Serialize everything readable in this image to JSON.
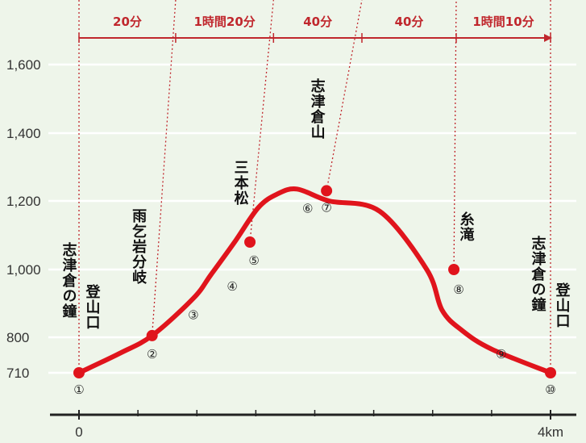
{
  "colors": {
    "profile_line": "#e0141c",
    "guide_line": "#c0272d",
    "axis": "#222222",
    "grid": "#ffffff",
    "background": "#eef5ea"
  },
  "chart_data": {
    "type": "line",
    "title": "",
    "xlabel": "",
    "ylabel": "",
    "xlim": [
      0,
      4
    ],
    "ylim": [
      710,
      1700
    ],
    "grid": true,
    "y_ticks": [
      "1,600",
      "1,400",
      "1,200",
      "1,000",
      "800",
      "710"
    ],
    "x_ticks": [
      "0",
      "4km"
    ],
    "profile": {
      "x": [
        0,
        0.35,
        0.62,
        0.97,
        1.12,
        1.32,
        1.52,
        1.68,
        1.85,
        2.12,
        2.55,
        2.95,
        3.08,
        3.25,
        3.5,
        4.0
      ],
      "y": [
        710,
        760,
        805,
        915,
        985,
        1080,
        1180,
        1220,
        1235,
        1200,
        1170,
        1000,
        880,
        820,
        770,
        710
      ]
    },
    "waypoints": [
      {
        "num": "①",
        "x": 0.0,
        "y": 710
      },
      {
        "num": "②",
        "x": 0.62,
        "y": 805
      },
      {
        "num": "③",
        "x": 0.97,
        "y": 915
      },
      {
        "num": "④",
        "x": 1.3,
        "y": 1000
      },
      {
        "num": "⑤",
        "x": 1.45,
        "y": 1080
      },
      {
        "num": "⑥",
        "x": 1.68,
        "y": 1185
      },
      {
        "num": "⑦",
        "x": 2.1,
        "y": 1230
      },
      {
        "num": "⑧",
        "x": 3.18,
        "y": 1000
      },
      {
        "num": "⑨",
        "x": 3.5,
        "y": 800
      },
      {
        "num": "⑩",
        "x": 4.0,
        "y": 710
      }
    ],
    "places": [
      {
        "name": "志津倉の鐘",
        "x": 0.0,
        "wp": 0
      },
      {
        "name": "登山口",
        "x": 0.0,
        "wp": 0
      },
      {
        "name": "雨乞岩分岐",
        "x": 0.62,
        "wp": 1
      },
      {
        "name": "三本松",
        "x": 1.45,
        "wp": 4
      },
      {
        "name": "志津倉山",
        "x": 2.1,
        "wp": 6
      },
      {
        "name": "糸滝",
        "x": 3.18,
        "wp": 7
      },
      {
        "name": "志津倉の鐘",
        "x": 4.0,
        "wp": 9
      },
      {
        "name": "登山口",
        "x": 4.0,
        "wp": 9
      }
    ],
    "segment_boundaries": [
      0.0,
      0.82,
      1.65,
      2.4,
      3.2,
      4.0
    ],
    "segment_times": [
      "20分",
      "1時間20分",
      "40分",
      "40分",
      "1時間10分"
    ]
  }
}
